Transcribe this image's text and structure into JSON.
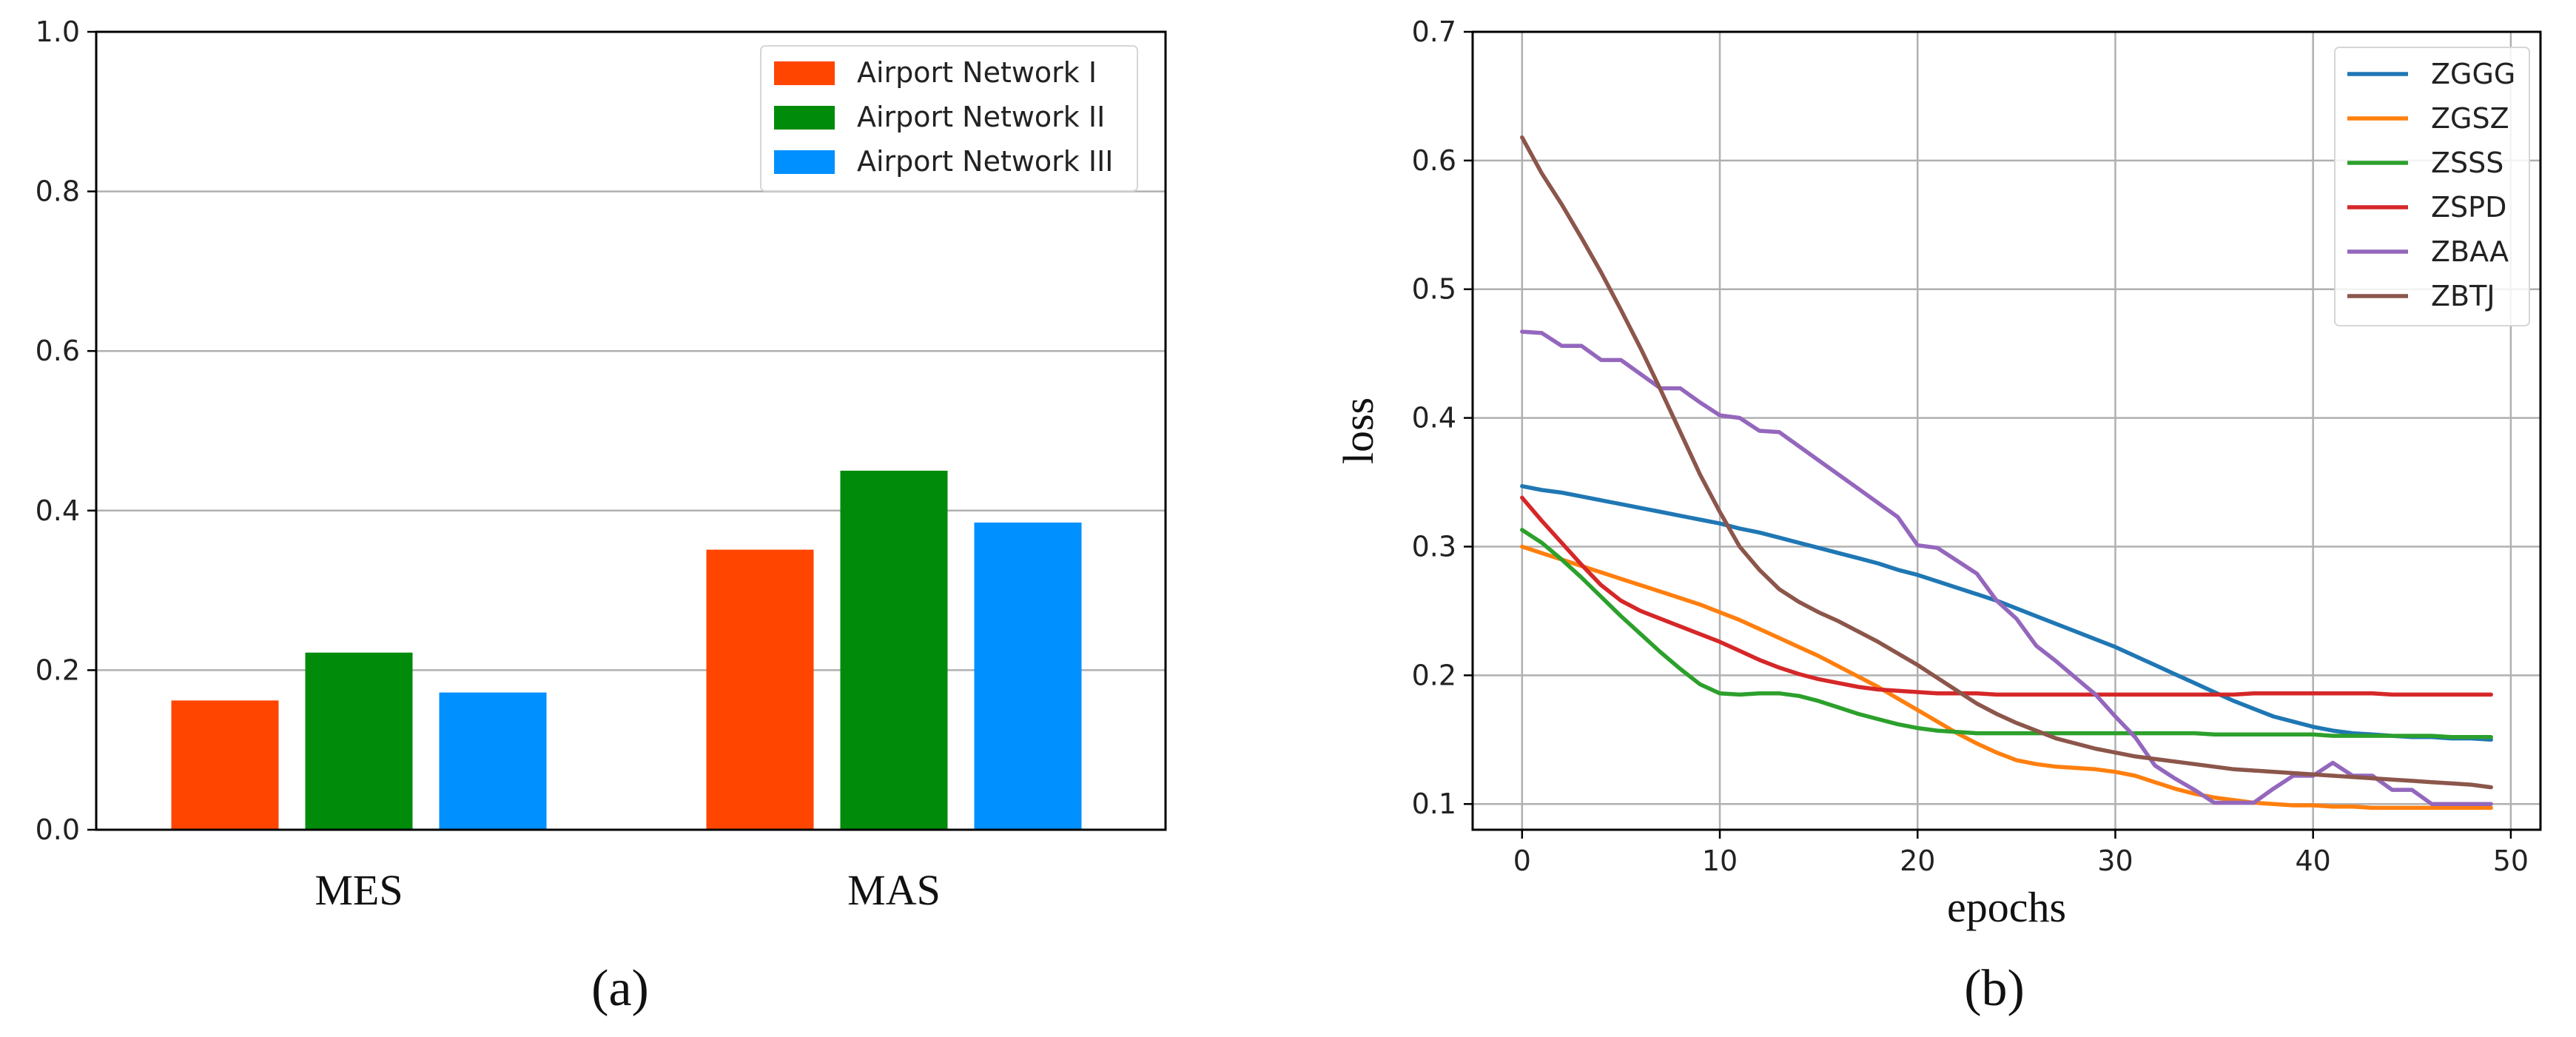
{
  "chart_data": [
    {
      "panel": "(a)",
      "type": "bar",
      "title": "",
      "xlabel": "",
      "ylabel": "",
      "ylim": [
        0,
        1.0
      ],
      "yticks": [
        "0.0",
        "0.2",
        "0.4",
        "0.6",
        "0.8",
        "1.0"
      ],
      "categories": [
        "MES",
        "MAS"
      ],
      "grid": "y",
      "legend_position": "top-right",
      "series": [
        {
          "name": "Airport  Network I",
          "color": "#FF4500",
          "values": [
            0.162,
            0.351
          ]
        },
        {
          "name": "Airport  Network II",
          "color": "#008B0B",
          "values": [
            0.222,
            0.45
          ]
        },
        {
          "name": "Airport  Network III",
          "color": "#0090FF",
          "values": [
            0.172,
            0.385
          ]
        }
      ]
    },
    {
      "panel": "(b)",
      "type": "line",
      "title": "",
      "xlabel": "epochs",
      "ylabel": "loss",
      "xlim": [
        -2.5,
        51.5
      ],
      "ylim": [
        0.08,
        0.7
      ],
      "xticks": [
        "0",
        "10",
        "20",
        "30",
        "40",
        "50"
      ],
      "yticks": [
        "0.1",
        "0.2",
        "0.3",
        "0.4",
        "0.5",
        "0.6",
        "0.7"
      ],
      "grid": "both",
      "legend_position": "top-right",
      "x": [
        0,
        1,
        2,
        3,
        4,
        5,
        6,
        7,
        8,
        9,
        10,
        11,
        12,
        13,
        14,
        15,
        16,
        17,
        18,
        19,
        20,
        21,
        22,
        23,
        24,
        25,
        26,
        27,
        28,
        29,
        30,
        31,
        32,
        33,
        34,
        35,
        36,
        37,
        38,
        39,
        40,
        41,
        42,
        43,
        44,
        45,
        46,
        47,
        48,
        49
      ],
      "series": [
        {
          "name": "ZGGG",
          "color": "#1F77B4",
          "values": [
            0.347,
            0.344,
            0.342,
            0.339,
            0.336,
            0.333,
            0.33,
            0.327,
            0.324,
            0.321,
            0.318,
            0.314,
            0.311,
            0.307,
            0.303,
            0.299,
            0.295,
            0.291,
            0.287,
            0.282,
            0.278,
            0.273,
            0.268,
            0.263,
            0.258,
            0.252,
            0.246,
            0.24,
            0.234,
            0.228,
            0.222,
            0.215,
            0.208,
            0.201,
            0.194,
            0.187,
            0.18,
            0.174,
            0.168,
            0.164,
            0.16,
            0.157,
            0.155,
            0.154,
            0.153,
            0.152,
            0.152,
            0.151,
            0.151,
            0.15
          ]
        },
        {
          "name": "ZGSZ",
          "color": "#FF7F0E",
          "values": [
            0.3,
            0.295,
            0.29,
            0.285,
            0.28,
            0.275,
            0.27,
            0.265,
            0.26,
            0.255,
            0.249,
            0.243,
            0.236,
            0.229,
            0.222,
            0.215,
            0.207,
            0.199,
            0.191,
            0.182,
            0.173,
            0.164,
            0.155,
            0.147,
            0.14,
            0.134,
            0.131,
            0.129,
            0.128,
            0.127,
            0.125,
            0.122,
            0.117,
            0.112,
            0.108,
            0.105,
            0.103,
            0.101,
            0.1,
            0.099,
            0.099,
            0.098,
            0.098,
            0.097,
            0.097,
            0.097,
            0.097,
            0.097,
            0.097,
            0.097
          ]
        },
        {
          "name": "ZSSS",
          "color": "#2CA02C",
          "values": [
            0.313,
            0.303,
            0.29,
            0.276,
            0.261,
            0.246,
            0.232,
            0.218,
            0.205,
            0.193,
            0.186,
            0.185,
            0.186,
            0.186,
            0.184,
            0.18,
            0.175,
            0.17,
            0.166,
            0.162,
            0.159,
            0.157,
            0.156,
            0.155,
            0.155,
            0.155,
            0.155,
            0.155,
            0.155,
            0.155,
            0.155,
            0.155,
            0.155,
            0.155,
            0.155,
            0.154,
            0.154,
            0.154,
            0.154,
            0.154,
            0.154,
            0.153,
            0.153,
            0.153,
            0.153,
            0.153,
            0.153,
            0.152,
            0.152,
            0.152
          ]
        },
        {
          "name": "ZSPD",
          "color": "#D62728",
          "values": [
            0.338,
            0.32,
            0.303,
            0.286,
            0.27,
            0.258,
            0.25,
            0.244,
            0.238,
            0.232,
            0.226,
            0.219,
            0.212,
            0.206,
            0.201,
            0.197,
            0.194,
            0.191,
            0.189,
            0.188,
            0.187,
            0.186,
            0.186,
            0.186,
            0.185,
            0.185,
            0.185,
            0.185,
            0.185,
            0.185,
            0.185,
            0.185,
            0.185,
            0.185,
            0.185,
            0.185,
            0.185,
            0.186,
            0.186,
            0.186,
            0.186,
            0.186,
            0.186,
            0.186,
            0.185,
            0.185,
            0.185,
            0.185,
            0.185,
            0.185
          ]
        },
        {
          "name": "ZBAA",
          "color": "#9467BD",
          "values": [
            0.467,
            0.466,
            0.456,
            0.456,
            0.445,
            0.445,
            0.434,
            0.423,
            0.423,
            0.412,
            0.402,
            0.4,
            0.39,
            0.389,
            0.378,
            0.367,
            0.356,
            0.345,
            0.334,
            0.323,
            0.301,
            0.299,
            0.289,
            0.279,
            0.258,
            0.244,
            0.223,
            0.211,
            0.198,
            0.185,
            0.168,
            0.152,
            0.13,
            0.12,
            0.111,
            0.101,
            0.101,
            0.101,
            0.112,
            0.122,
            0.122,
            0.132,
            0.122,
            0.122,
            0.111,
            0.111,
            0.1,
            0.1,
            0.1,
            0.1
          ]
        },
        {
          "name": "ZBTJ",
          "color": "#8C564B",
          "values": [
            0.618,
            0.59,
            0.566,
            0.54,
            0.513,
            0.484,
            0.454,
            0.422,
            0.389,
            0.356,
            0.327,
            0.3,
            0.282,
            0.267,
            0.257,
            0.249,
            0.242,
            0.234,
            0.226,
            0.217,
            0.208,
            0.198,
            0.188,
            0.178,
            0.17,
            0.163,
            0.157,
            0.151,
            0.147,
            0.143,
            0.14,
            0.137,
            0.135,
            0.133,
            0.131,
            0.129,
            0.127,
            0.126,
            0.125,
            0.124,
            0.123,
            0.122,
            0.121,
            0.12,
            0.119,
            0.118,
            0.117,
            0.116,
            0.115,
            0.113
          ]
        }
      ]
    }
  ]
}
